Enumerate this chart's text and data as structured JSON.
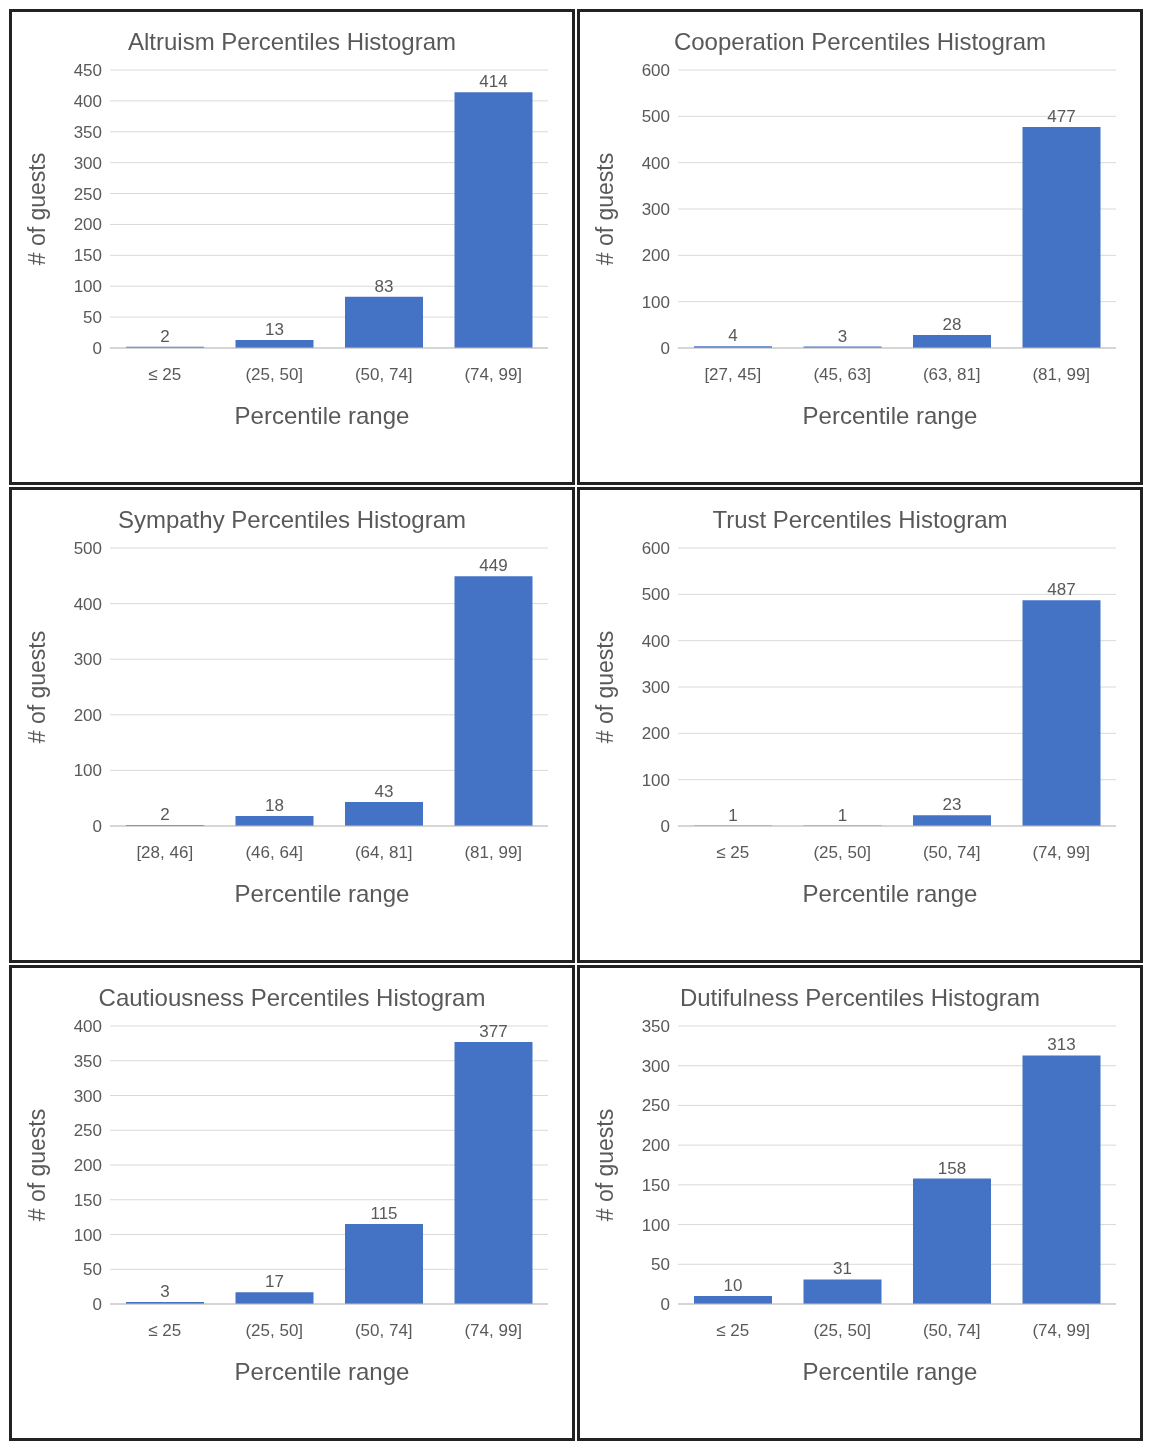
{
  "chart_data": [
    {
      "type": "bar",
      "title": "Altruism Percentiles Histogram",
      "xlabel": "Percentile range",
      "ylabel": "# of guests",
      "categories": [
        "≤ 25",
        "(25, 50]",
        "(50, 74]",
        "(74, 99]"
      ],
      "values": [
        2,
        13,
        83,
        414
      ],
      "color": "#4472c4",
      "ylim": [
        0,
        450
      ],
      "yticks": [
        0,
        50,
        100,
        150,
        200,
        250,
        300,
        350,
        400,
        450
      ],
      "grid": "y",
      "data_labels": true
    },
    {
      "type": "bar",
      "title": "Cooperation Percentiles Histogram",
      "xlabel": "Percentile range",
      "ylabel": "# of guests",
      "categories": [
        "[27, 45]",
        "(45, 63]",
        "(63, 81]",
        "(81, 99]"
      ],
      "values": [
        4,
        3,
        28,
        477
      ],
      "color": "#4472c4",
      "ylim": [
        0,
        600
      ],
      "yticks": [
        0,
        100,
        200,
        300,
        400,
        500,
        600
      ],
      "grid": "y",
      "data_labels": true
    },
    {
      "type": "bar",
      "title": "Sympathy Percentiles Histogram",
      "xlabel": "Percentile range",
      "ylabel": "# of guests",
      "categories": [
        "[28, 46]",
        "(46, 64]",
        "(64, 81]",
        "(81, 99]"
      ],
      "values": [
        2,
        18,
        43,
        449
      ],
      "color": "#4472c4",
      "ylim": [
        0,
        500
      ],
      "yticks": [
        0,
        100,
        200,
        300,
        400,
        500
      ],
      "grid": "y",
      "data_labels": true
    },
    {
      "type": "bar",
      "title": "Trust Percentiles Histogram",
      "xlabel": "Percentile range",
      "ylabel": "# of guests",
      "categories": [
        "≤ 25",
        "(25, 50]",
        "(50, 74]",
        "(74, 99]"
      ],
      "values": [
        1,
        1,
        23,
        487
      ],
      "color": "#4472c4",
      "ylim": [
        0,
        600
      ],
      "yticks": [
        0,
        100,
        200,
        300,
        400,
        500,
        600
      ],
      "grid": "y",
      "data_labels": true
    },
    {
      "type": "bar",
      "title": "Cautiousness Percentiles Histogram",
      "xlabel": "Percentile range",
      "ylabel": "# of guests",
      "categories": [
        "≤ 25",
        "(25, 50]",
        "(50, 74]",
        "(74, 99]"
      ],
      "values": [
        3,
        17,
        115,
        377
      ],
      "color": "#4472c4",
      "ylim": [
        0,
        400
      ],
      "yticks": [
        0,
        50,
        100,
        150,
        200,
        250,
        300,
        350,
        400
      ],
      "grid": "y",
      "data_labels": true
    },
    {
      "type": "bar",
      "title": "Dutifulness Percentiles Histogram",
      "xlabel": "Percentile range",
      "ylabel": "# of guests",
      "categories": [
        "≤ 25",
        "(25, 50]",
        "(50, 74]",
        "(74, 99]"
      ],
      "values": [
        10,
        31,
        158,
        313
      ],
      "color": "#4472c4",
      "ylim": [
        0,
        350
      ],
      "yticks": [
        0,
        50,
        100,
        150,
        200,
        250,
        300,
        350
      ],
      "grid": "y",
      "data_labels": true
    }
  ]
}
